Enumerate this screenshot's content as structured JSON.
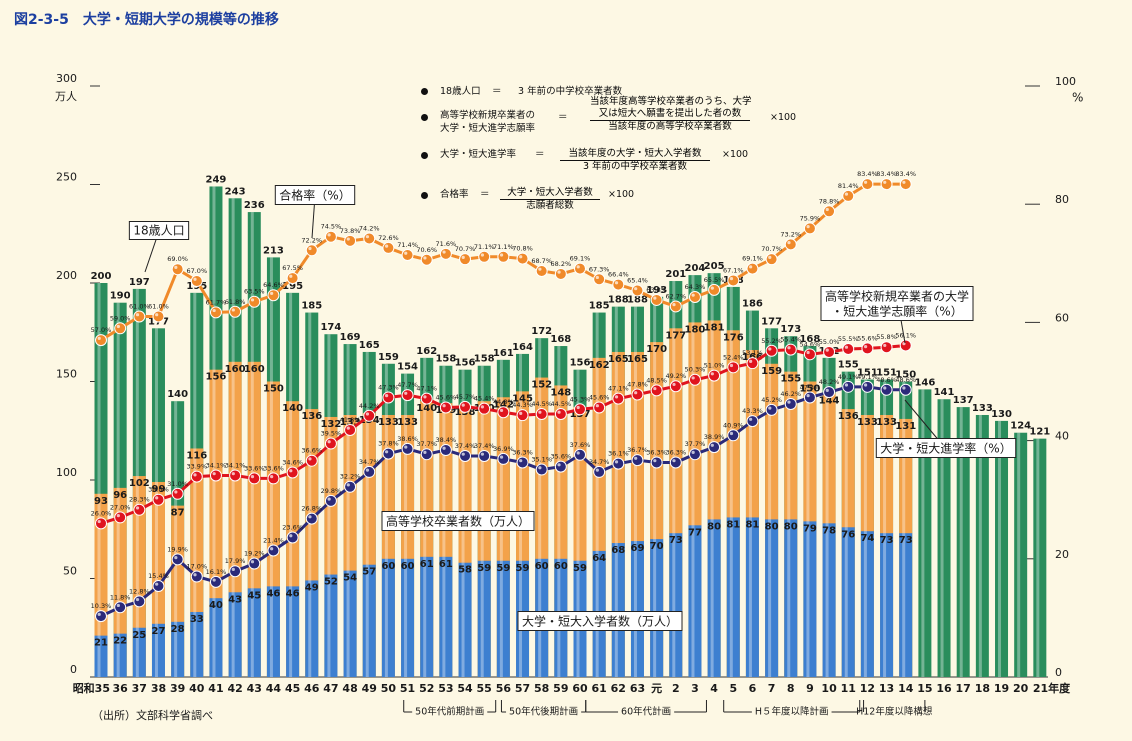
{
  "title": "図2-3-5　大学・短期大学の規模等の推移",
  "source": "（出所）文部科学省調べ",
  "formulas": [
    {
      "lhs": [
        "18歳人口"
      ],
      "eq": "＝",
      "rhs": "3 年前の中学校卒業者数"
    },
    {
      "lhs": [
        "高等学校新規卒業者の",
        "大学・短大進学志願率"
      ],
      "eq": "＝",
      "numerator": [
        "当該年度高等学校卒業者のうち、大学",
        "又は短大へ願書を提出した者の数"
      ],
      "denominator": "当該年度の高等学校卒業者数",
      "factor": "×100"
    },
    {
      "lhs": [
        "大学・短大進学率"
      ],
      "eq": "＝",
      "numerator": [
        "当該年度の大学・短大入学者数"
      ],
      "denominator": "3 年前の中学校卒業者数",
      "factor": "×100"
    },
    {
      "lhs": [
        "合格率"
      ],
      "eq": "＝",
      "numerator": [
        "大学・短大入学者数"
      ],
      "denominator": "志願者総数",
      "factor": "×100"
    }
  ],
  "chart_data": {
    "type": "bar",
    "categories": [
      "昭和35",
      "36",
      "37",
      "38",
      "39",
      "40",
      "41",
      "42",
      "43",
      "44",
      "45",
      "46",
      "47",
      "48",
      "49",
      "50",
      "51",
      "52",
      "53",
      "54",
      "55",
      "56",
      "57",
      "58",
      "59",
      "60",
      "61",
      "62",
      "63",
      "元",
      "2",
      "3",
      "4",
      "5",
      "6",
      "7",
      "8",
      "9",
      "10",
      "11",
      "12",
      "13",
      "14",
      "15",
      "16",
      "17",
      "18",
      "19",
      "20",
      "21年度"
    ],
    "ylim": [
      0,
      300
    ],
    "yticks": [
      0,
      50,
      100,
      150,
      200,
      250,
      300
    ],
    "yunit": "万人",
    "y2lim": [
      0,
      100
    ],
    "y2ticks": [
      0,
      20,
      40,
      60,
      80,
      100
    ],
    "y2unit": "%",
    "series": [
      {
        "type": "bar",
        "color": "#2a8d5c",
        "values": [
          200,
          190,
          197,
          177,
          140,
          195,
          249,
          243,
          236,
          213,
          195,
          185,
          174,
          169,
          165,
          159,
          154,
          162,
          158,
          156,
          158,
          161,
          164,
          172,
          168,
          156,
          185,
          188,
          188,
          193,
          201,
          204,
          205,
          198,
          186,
          177,
          173,
          168,
          162,
          155,
          151,
          151,
          150,
          146,
          141,
          137,
          133,
          130,
          124,
          121
        ]
      },
      {
        "type": "bar",
        "color": "#f3a24a",
        "values": [
          93,
          96,
          102,
          99,
          87,
          116,
          156,
          160,
          160,
          150,
          140,
          136,
          132,
          133,
          134,
          133,
          133,
          140,
          139,
          138,
          140,
          142,
          145,
          152,
          148,
          137,
          162,
          165,
          165,
          170,
          177,
          180,
          181,
          176,
          166,
          159,
          155,
          150,
          144,
          136,
          133,
          133,
          131,
          null,
          null,
          null,
          null,
          null,
          null,
          null
        ]
      },
      {
        "type": "bar",
        "color": "#3d7fd0",
        "values": [
          21,
          22,
          25,
          27,
          28,
          33,
          40,
          43,
          45,
          46,
          46,
          49,
          52,
          54,
          57,
          60,
          60,
          61,
          61,
          58,
          59,
          59,
          59,
          60,
          60,
          59,
          64,
          68,
          69,
          70,
          73,
          77,
          80,
          81,
          81,
          80,
          80,
          79,
          78,
          76,
          74,
          73,
          73,
          null,
          null,
          null,
          null,
          null,
          null,
          null
        ]
      },
      {
        "type": "line",
        "axis": "y2",
        "color": "#f08a2a",
        "values": [
          57.0,
          59.0,
          61.0,
          61.0,
          69.0,
          67.0,
          61.7,
          61.8,
          63.5,
          64.6,
          67.5,
          72.2,
          74.5,
          73.8,
          74.2,
          72.6,
          71.4,
          70.6,
          71.6,
          70.7,
          71.1,
          71.1,
          70.8,
          68.7,
          68.2,
          69.1,
          67.3,
          66.4,
          65.4,
          63.8,
          62.7,
          64.3,
          65.5,
          67.1,
          69.1,
          70.7,
          73.2,
          75.9,
          78.8,
          81.4,
          83.4,
          83.4,
          83.4,
          null,
          null,
          null,
          null,
          null,
          null,
          null
        ],
        "value_labels": [
          "57.0%",
          "59.0%",
          "61.0%",
          "61.0%",
          "69.0%",
          "67.0%",
          "61.7%",
          "61.8%",
          "63.5%",
          "64.6%",
          "67.5%",
          "72.2%",
          "74.5%",
          "73.8%",
          "74.2%",
          "72.6%",
          "71.4%",
          "70.6%",
          "71.6%",
          "70.7%",
          "71.1%",
          "71.1%",
          "70.8%",
          "68.7%",
          "68.2%",
          "69.1%",
          "67.3%",
          "66.4%",
          "65.4%",
          "63.8%",
          "62.7%",
          "64.3%",
          "65.5%",
          "67.1%",
          "69.1%",
          "70.7%",
          "73.2%",
          "75.9%",
          "78.8%",
          "81.4%",
          "83.4%",
          "83.4%",
          "83.4%",
          null,
          null,
          null,
          null,
          null,
          null,
          null
        ]
      },
      {
        "type": "line",
        "axis": "y2",
        "color": "#e0141e",
        "values": [
          26.0,
          27.0,
          28.3,
          30.0,
          31.0,
          33.9,
          34.1,
          34.1,
          33.6,
          33.6,
          34.6,
          36.6,
          39.5,
          41.8,
          44.2,
          47.3,
          47.7,
          47.1,
          45.6,
          45.7,
          45.4,
          44.8,
          44.3,
          44.5,
          44.5,
          45.3,
          45.6,
          47.1,
          47.8,
          48.5,
          49.2,
          50.3,
          51.0,
          52.4,
          53.1,
          55.2,
          55.4,
          54.6,
          55.0,
          55.5,
          55.6,
          55.8,
          56.1,
          null,
          null,
          null,
          null,
          null,
          null,
          null
        ],
        "value_labels": [
          "26.0%",
          "27.0%",
          "28.3%",
          "30.0%",
          "31.0%",
          "33.9%",
          "34.1%",
          "34.1%",
          "33.6%",
          "33.6%",
          "34.6%",
          "36.6%",
          "39.5%",
          "41.8%",
          "44.2%",
          "47.3%",
          "47.7%",
          "47.1%",
          "45.6%",
          "45.7%",
          "45.4%",
          "44.8%",
          "44.3%",
          "44.5%",
          "44.5%",
          "45.3%",
          "45.6%",
          "47.1%",
          "47.8%",
          "48.5%",
          "49.2%",
          "50.3%",
          "51.0%",
          "52.4%",
          "53.1%",
          "55.2%",
          "55.4%",
          "54.6%",
          "55.0%",
          "55.5%",
          "55.6%",
          "55.8%",
          "56.1%",
          null,
          null,
          null,
          null,
          null,
          null,
          null
        ]
      },
      {
        "type": "line",
        "axis": "y2",
        "color": "#2b2a7a",
        "values": [
          10.3,
          11.8,
          12.8,
          15.4,
          19.9,
          17.0,
          16.1,
          17.9,
          19.2,
          21.4,
          23.6,
          26.8,
          29.8,
          32.2,
          34.7,
          37.8,
          38.6,
          37.7,
          38.4,
          37.4,
          37.4,
          36.9,
          36.3,
          35.1,
          35.6,
          37.6,
          34.7,
          36.1,
          36.7,
          36.3,
          36.3,
          37.7,
          38.9,
          40.9,
          43.3,
          45.2,
          46.2,
          47.3,
          48.2,
          49.1,
          49.1,
          48.6,
          48.6,
          null,
          null,
          null,
          null,
          null,
          null,
          null
        ],
        "value_labels": [
          "10.3%",
          "11.8%",
          "12.8%",
          "15.4%",
          "19.9%",
          "17.0%",
          "16.1%",
          "17.9%",
          "19.2%",
          "21.4%",
          "23.6%",
          "26.8%",
          "29.8%",
          "32.2%",
          "34.7%",
          "37.8%",
          "38.6%",
          "37.7%",
          "38.4%",
          "37.4%",
          "37.4%",
          "36.9%",
          "36.3%",
          "35.1%",
          "35.6%",
          "37.6%",
          "34.7%",
          "36.1%",
          "36.7%",
          "36.3%",
          "36.3%",
          "37.7%",
          "38.9%",
          "40.9%",
          "43.3%",
          "45.2%",
          "46.2%",
          "47.3%",
          "48.2%",
          "49.1%",
          "49.1%",
          "48.6%",
          "48.6%",
          null,
          null,
          null,
          null,
          null,
          null,
          null
        ]
      }
    ],
    "annotations": [
      {
        "lines": [
          "18歳人口"
        ]
      },
      {
        "lines": [
          "合格率（%）"
        ]
      },
      {
        "lines": [
          "高等学校新規卒業者の大学",
          "・短大進学志願率（%）"
        ]
      },
      {
        "lines": [
          "高等学校卒業者数（万人）"
        ]
      },
      {
        "lines": [
          "大学・短大入学者数（万人）"
        ]
      },
      {
        "lines": [
          "大学・短大進学率（%）"
        ]
      }
    ],
    "plans": [
      "50年代前期計画",
      "50年代後期計画",
      "60年代計画",
      "H５年度以降計画",
      "H12年度以降構想"
    ]
  }
}
